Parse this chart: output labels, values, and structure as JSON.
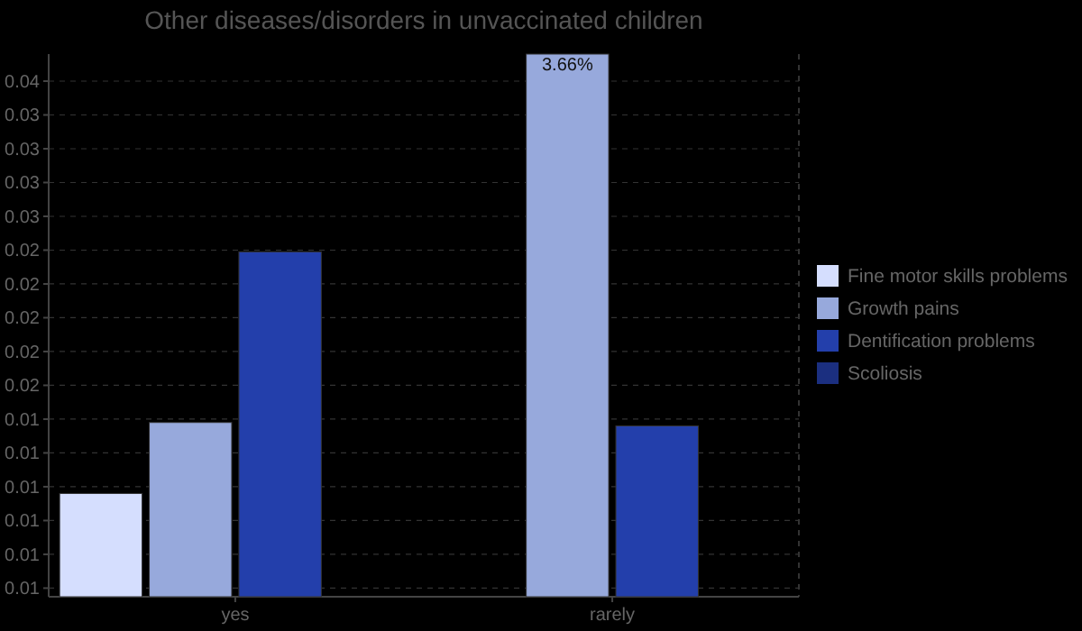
{
  "chart_data": {
    "type": "bar",
    "title": "Other diseases/disorders in unvaccinated children",
    "categories": [
      "yes",
      "rarely"
    ],
    "series": [
      {
        "name": "Fine motor skills problems",
        "color": "#d5defe",
        "values": [
          0.0106,
          null
        ]
      },
      {
        "name": "Growth pains",
        "color": "#97a9dc",
        "values": [
          0.0148,
          0.0366
        ],
        "value_labels": [
          null,
          "3.66%"
        ]
      },
      {
        "name": "Dentification problems",
        "color": "#233fab",
        "values": [
          0.0249,
          0.0146
        ]
      },
      {
        "name": "Scoliosis",
        "color": "#1b2f80",
        "values": [
          null,
          null
        ]
      }
    ],
    "ylim": [
      0.00449,
      0.0366
    ],
    "yticks": [
      {
        "value": 0.005,
        "label": "0.01"
      },
      {
        "value": 0.007,
        "label": "0.01"
      },
      {
        "value": 0.009,
        "label": "0.01"
      },
      {
        "value": 0.011,
        "label": "0.01"
      },
      {
        "value": 0.013,
        "label": "0.01"
      },
      {
        "value": 0.015,
        "label": "0.01"
      },
      {
        "value": 0.017,
        "label": "0.02"
      },
      {
        "value": 0.019,
        "label": "0.02"
      },
      {
        "value": 0.021,
        "label": "0.02"
      },
      {
        "value": 0.023,
        "label": "0.02"
      },
      {
        "value": 0.025,
        "label": "0.02"
      },
      {
        "value": 0.027,
        "label": "0.03"
      },
      {
        "value": 0.029,
        "label": "0.03"
      },
      {
        "value": 0.031,
        "label": "0.03"
      },
      {
        "value": 0.033,
        "label": "0.03"
      },
      {
        "value": 0.035,
        "label": "0.04"
      }
    ],
    "grid": "y",
    "legend": "right"
  }
}
